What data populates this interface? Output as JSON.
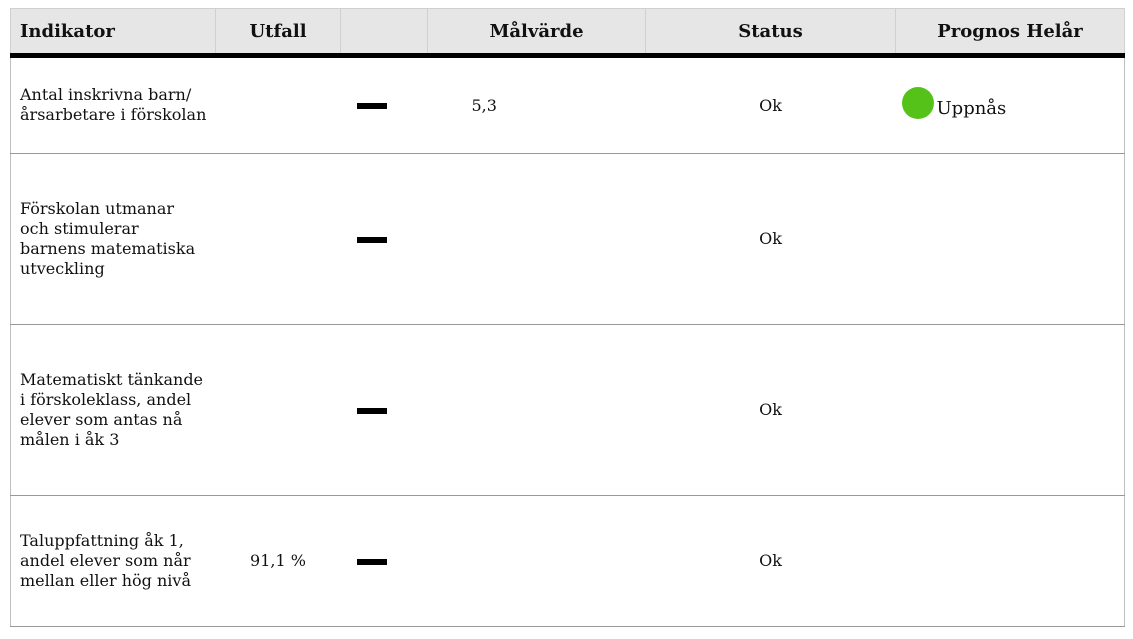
{
  "columns": {
    "indikator": "Indikator",
    "utfall": "Utfall",
    "malvarde": "Målvärde",
    "status": "Status",
    "prognos": "Prognos Helår"
  },
  "trend_icon": "dash-icon",
  "rows": [
    {
      "indikator": "Antal inskrivna barn/årsarbetare i förskolan",
      "utfall": "",
      "trend": "neutral",
      "malvarde": "5,3",
      "status": "Ok",
      "prognos": "Uppnås",
      "prognos_color": "#55c21a"
    },
    {
      "indikator": "Förskolan utmanar och stimulerar barnens matematiska utveckling",
      "utfall": "",
      "trend": "neutral",
      "malvarde": "",
      "status": "Ok",
      "prognos": ""
    },
    {
      "indikator": "Matematiskt tänkande i förskoleklass, andel elever som antas nå målen i åk 3",
      "utfall": "",
      "trend": "neutral",
      "malvarde": "",
      "status": "Ok",
      "prognos": ""
    },
    {
      "indikator": "Taluppfattning åk 1, andel elever som når mellan eller hög nivå",
      "utfall": "91,1 %",
      "trend": "neutral",
      "malvarde": "",
      "status": "Ok",
      "prognos": ""
    }
  ]
}
